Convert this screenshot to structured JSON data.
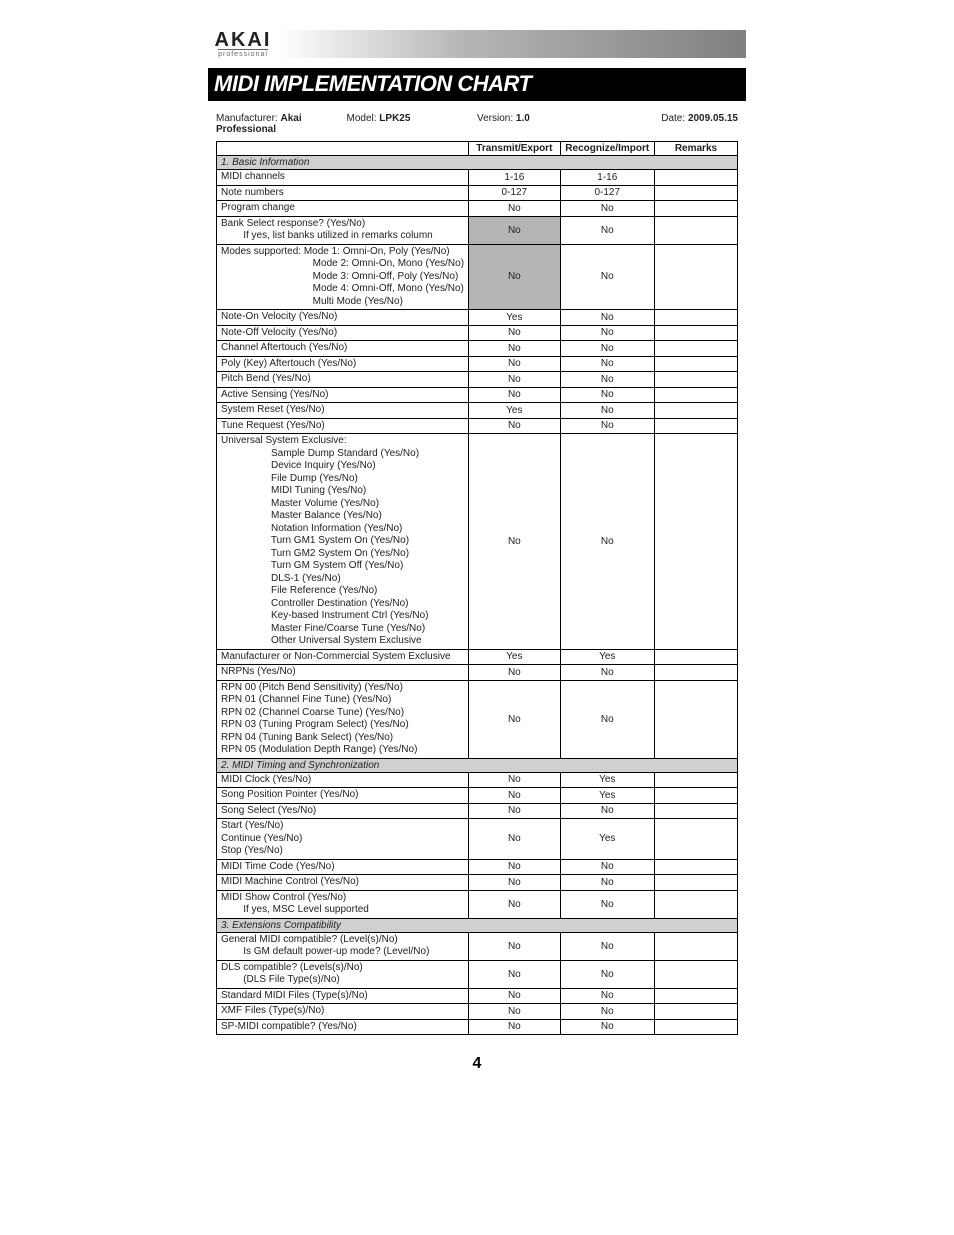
{
  "logo": {
    "main": "AKAI",
    "sub": "professional"
  },
  "title": "MIDI IMPLEMENTATION CHART",
  "meta": {
    "manufacturer_label": "Manufacturer:",
    "manufacturer": "Akai Professional",
    "model_label": "Model:",
    "model": "LPK25",
    "version_label": "Version:",
    "version": "1.0",
    "date_label": "Date:",
    "date": "2009.05.15"
  },
  "headers": {
    "c1": "",
    "c2": "Transmit/Export",
    "c3": "Recognize/Import",
    "c4": "Remarks"
  },
  "sections": {
    "s1": "1. Basic Information",
    "s2": "2. MIDI Timing and Synchronization",
    "s3": "3. Extensions Compatibility"
  },
  "rows": {
    "midi_channels": {
      "p": "MIDI channels",
      "t": "1-16",
      "r": "1-16",
      "rm": ""
    },
    "note_numbers": {
      "p": "Note numbers",
      "t": "0-127",
      "r": "0-127",
      "rm": ""
    },
    "program_change": {
      "p": "Program change",
      "t": "No",
      "r": "No",
      "rm": ""
    },
    "bank_select": {
      "p": "Bank Select response? (Yes/No)\n        If yes, list banks utilized in remarks column",
      "t": "No",
      "r": "No",
      "rm": "",
      "t_shade": true
    },
    "modes_supported": {
      "p": "Modes supported: Mode 1: Omni-On, Poly (Yes/No)\n                                 Mode 2: Omni-On, Mono (Yes/No)\n                                 Mode 3: Omni-Off, Poly (Yes/No)\n                                 Mode 4: Omni-Off, Mono (Yes/No)\n                                 Multi Mode (Yes/No)",
      "t": "No",
      "r": "No",
      "rm": "",
      "t_shade": true
    },
    "note_on_vel": {
      "p": "Note-On Velocity (Yes/No)",
      "t": "Yes",
      "r": "No",
      "rm": ""
    },
    "note_off_vel": {
      "p": "Note-Off Velocity (Yes/No)",
      "t": "No",
      "r": "No",
      "rm": ""
    },
    "channel_aftertouch": {
      "p": "Channel Aftertouch (Yes/No)",
      "t": "No",
      "r": "No",
      "rm": ""
    },
    "poly_aftertouch": {
      "p": "Poly (Key) Aftertouch (Yes/No)",
      "t": "No",
      "r": "No",
      "rm": ""
    },
    "pitch_bend": {
      "p": "Pitch Bend (Yes/No)",
      "t": "No",
      "r": "No",
      "rm": ""
    },
    "active_sensing": {
      "p": "Active Sensing (Yes/No)",
      "t": "No",
      "r": "No",
      "rm": ""
    },
    "system_reset": {
      "p": "System Reset (Yes/No)",
      "t": "Yes",
      "r": "No",
      "rm": ""
    },
    "tune_request": {
      "p": "Tune Request (Yes/No)",
      "t": "No",
      "r": "No",
      "rm": ""
    },
    "univ_sysex": {
      "p": "Universal System Exclusive:\n                  Sample Dump Standard (Yes/No)\n                  Device Inquiry (Yes/No)\n                  File Dump (Yes/No)\n                  MIDI Tuning (Yes/No)\n                  Master Volume (Yes/No)\n                  Master Balance (Yes/No)\n                  Notation Information (Yes/No)\n                  Turn GM1 System On (Yes/No)\n                  Turn GM2 System On (Yes/No)\n                  Turn GM System Off (Yes/No)\n                  DLS-1 (Yes/No)\n                  File Reference (Yes/No)\n                  Controller Destination (Yes/No)\n                  Key-based Instrument Ctrl (Yes/No)\n                  Master Fine/Coarse Tune (Yes/No)\n                  Other Universal System Exclusive",
      "t": "No",
      "r": "No",
      "rm": ""
    },
    "manuf_sysex": {
      "p": "Manufacturer or Non-Commercial System Exclusive",
      "t": "Yes",
      "r": "Yes",
      "rm": ""
    },
    "nrpns": {
      "p": "NRPNs (Yes/No)",
      "t": "No",
      "r": "No",
      "rm": ""
    },
    "rpns": {
      "p": "RPN 00 (Pitch Bend Sensitivity) (Yes/No)\nRPN 01 (Channel Fine Tune) (Yes/No)\nRPN 02 (Channel Coarse Tune) (Yes/No)\nRPN 03 (Tuning Program Select) (Yes/No)\nRPN 04 (Tuning Bank Select) (Yes/No)\nRPN 05 (Modulation Depth Range) (Yes/No)",
      "t": "No",
      "r": "No",
      "rm": ""
    },
    "midi_clock": {
      "p": "MIDI Clock (Yes/No)",
      "t": "No",
      "r": "Yes",
      "rm": ""
    },
    "spp": {
      "p": "Song Position Pointer (Yes/No)",
      "t": "No",
      "r": "Yes",
      "rm": ""
    },
    "song_select": {
      "p": "Song Select (Yes/No)",
      "t": "No",
      "r": "No",
      "rm": ""
    },
    "start_cont_stop": {
      "p": "Start (Yes/No)\nContinue (Yes/No)\nStop (Yes/No)",
      "t": "No",
      "r": "Yes",
      "rm": ""
    },
    "mtc": {
      "p": "MIDI Time Code (Yes/No)",
      "t": "No",
      "r": "No",
      "rm": ""
    },
    "mmc": {
      "p": "MIDI Machine Control (Yes/No)",
      "t": "No",
      "r": "No",
      "rm": ""
    },
    "msc": {
      "p": "MIDI Show Control (Yes/No)\n        If yes, MSC Level supported",
      "t": "No",
      "r": "No",
      "rm": ""
    },
    "gm": {
      "p": "General MIDI compatible? (Level(s)/No)\n        Is GM default power-up mode? (Level/No)",
      "t": "No",
      "r": "No",
      "rm": ""
    },
    "dls": {
      "p": "DLS compatible? (Levels(s)/No)\n        (DLS File Type(s)/No)",
      "t": "No",
      "r": "No",
      "rm": ""
    },
    "smf": {
      "p": "Standard MIDI Files (Type(s)/No)",
      "t": "No",
      "r": "No",
      "rm": ""
    },
    "xmf": {
      "p": "XMF Files (Type(s)/No)",
      "t": "No",
      "r": "No",
      "rm": ""
    },
    "spmidi": {
      "p": "SP-MIDI compatible? (Yes/No)",
      "t": "No",
      "r": "No",
      "rm": ""
    }
  },
  "page_number": "4"
}
